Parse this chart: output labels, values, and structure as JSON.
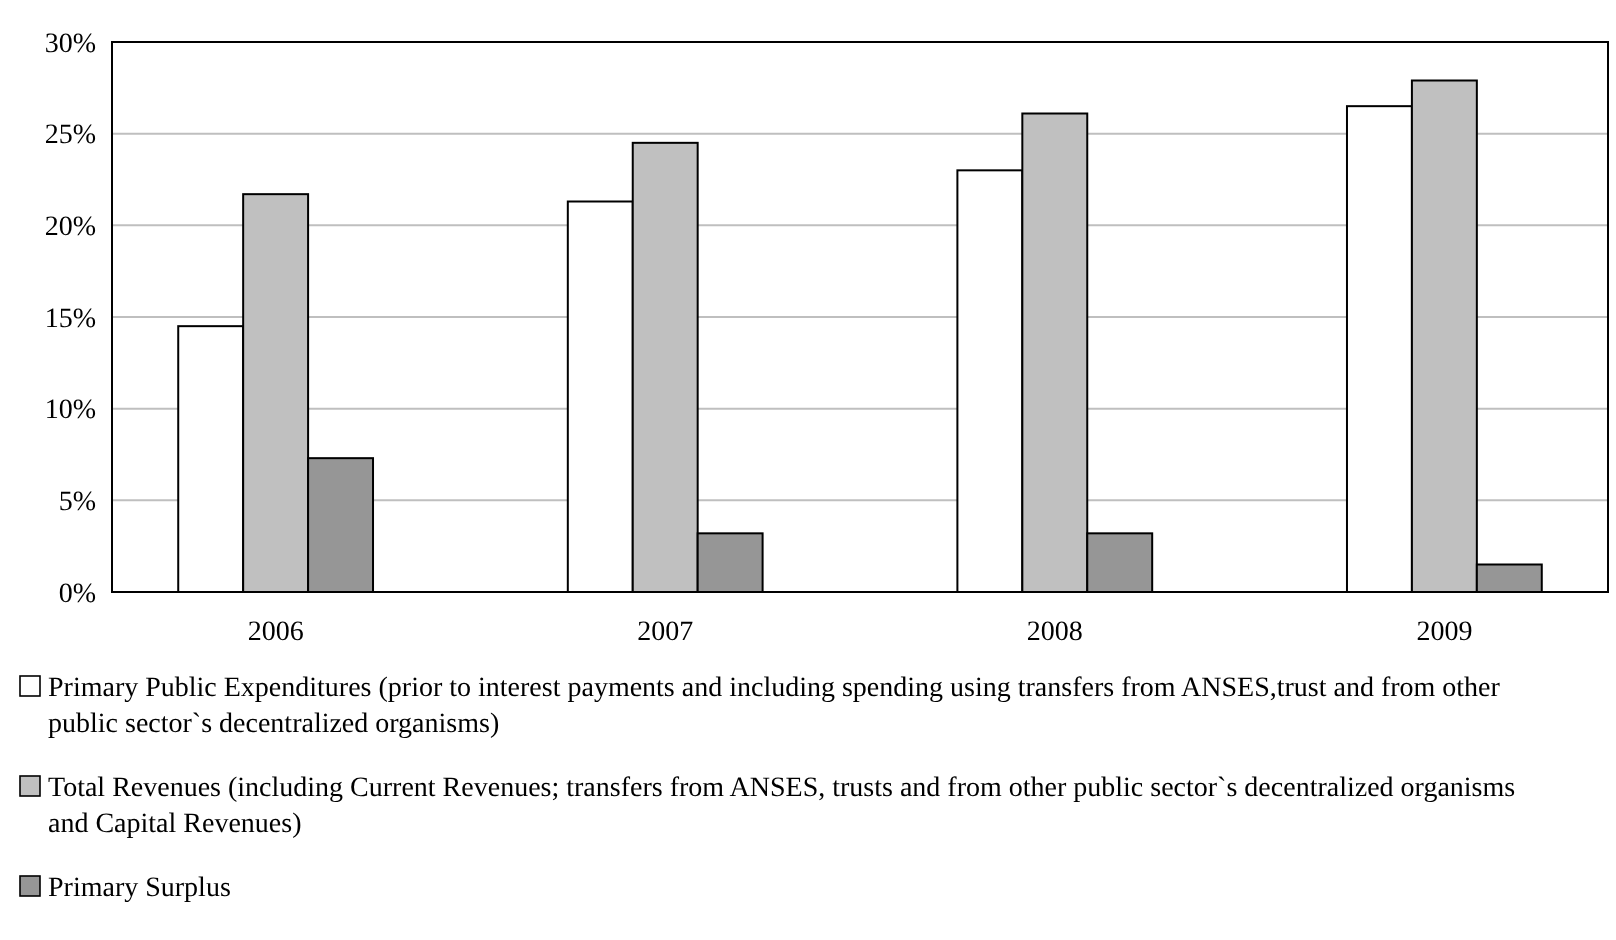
{
  "chart_data": {
    "type": "bar",
    "categories": [
      "2006",
      "2007",
      "2008",
      "2009"
    ],
    "series": [
      {
        "name": "Primary Public Expenditures (prior to interest payments and including spending using transfers from ANSES,trust and from other public sector`s decentralized organisms)",
        "color": "#ffffff",
        "values": [
          14.5,
          21.3,
          23.0,
          26.5
        ]
      },
      {
        "name": "Total Revenues (including Current Revenues; transfers from ANSES, trusts and from other public sector`s decentralized organisms and Capital Revenues)",
        "color": "#c0c0c0",
        "values": [
          21.7,
          24.5,
          26.1,
          27.9
        ]
      },
      {
        "name": "Primary Surplus",
        "color": "#969696",
        "values": [
          7.3,
          3.2,
          3.2,
          1.5
        ]
      }
    ],
    "ylim": [
      0,
      30
    ],
    "yticks": [
      {
        "value": 0,
        "label": "0%"
      },
      {
        "value": 5,
        "label": "5%"
      },
      {
        "value": 10,
        "label": "10%"
      },
      {
        "value": 15,
        "label": "15%"
      },
      {
        "value": 20,
        "label": "20%"
      },
      {
        "value": 25,
        "label": "25%"
      },
      {
        "value": 30,
        "label": "30%"
      }
    ],
    "grid": "y",
    "legend": "bottom"
  }
}
